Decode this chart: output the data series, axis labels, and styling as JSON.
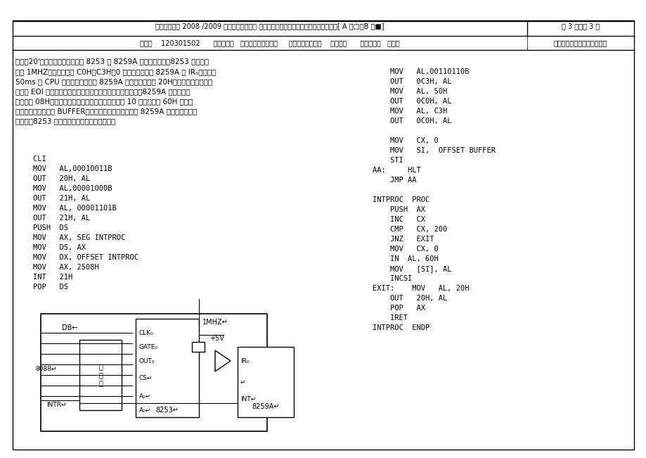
{
  "title_line": "上海电力学院 2008 /2009 学年第二学期期末 考试试卷标准答案（评分要点）和评分标准[ A 卷□、B 卷■]",
  "page_info": "共 3 页，第 3 页",
  "course_line": "课号：    120301502      课程名称：   微机原理与接口技术     开课学院（系）：    电自学院      答卷教师：   黄云峰",
  "answer_note": "（答案纸与试卷纸要分开放）",
  "question_header": "五、（20'）某一实时时钟系统由 8253 和 8259A 组成，如下图。8253 的工作频",
  "para_lines": [
    "率为 1MHZ，端口地址为 C0H～C3H，0 通道的输出接至 8259A 的 IR₀，使其每",
    "50ms 向 CPU 申请一次中断。设 8259A 的端口偶地址为 20H，采用缓冲器方式和",
    "普通的 EOI 命令，中断请求信号是边沿触发，当中断响应时，8259A 输出的中断",
    "类型号为 08H。要求在不增加硬件的情况下，实现每 10 秒钟从端口 60H 输入一",
    "个数据至内存缓冲区 BUFFER。写出相应的主程序（包括 8259A 初始化，中断向",
    "量设置，8253 初始化等）和中断服务子程序。"
  ],
  "left_code": [
    "    CLI",
    "    MOV   AL,00010011B",
    "    OUT   20H, AL",
    "    MOV   AL,00001000B",
    "    OUT   21H, AL",
    "    MOV   AL, 00001101B",
    "    OUT   21H, AL",
    "    PUSH  DS",
    "    MOV   AX, SEG INTPROC",
    "    MOV   DS, AX",
    "    MOV   DX, OFFSET INTPROC",
    "    MOV   AX, 2508H",
    "    INT   21H",
    "    POP   DS"
  ],
  "right_code_top": [
    "    MOV   AL,00110110B",
    "    OUT   0C3H, AL",
    "    MOV   AL, 50H",
    "    OUT   0C0H, AL",
    "    MOV   AL, C3H",
    "    OUT   0C0H, AL",
    "",
    "    MOV   CX, 0",
    "    MOV   SI,  OFFSET BUFFER",
    "    STI",
    "AA:     HLT",
    "    JMP AA",
    "",
    "INTPROC  PROC",
    "    PUSH  AX",
    "    INC   CX",
    "    CMP   CX, 200",
    "    JNZ   EXIT",
    "    MOV   CX, 0",
    "    IN  AL, 60H",
    "    MOV   [SI], AL",
    "    INCSI",
    "EXIT:    MOV   AL, 20H",
    "    OUT   20H, AL",
    "    POP   AX",
    "    IRET",
    "INTPROC  ENDP"
  ],
  "bg_color": "#ffffff",
  "border_color": "#000000",
  "text_color": "#000000",
  "font_size": 7.5,
  "header_font_size": 8.0
}
